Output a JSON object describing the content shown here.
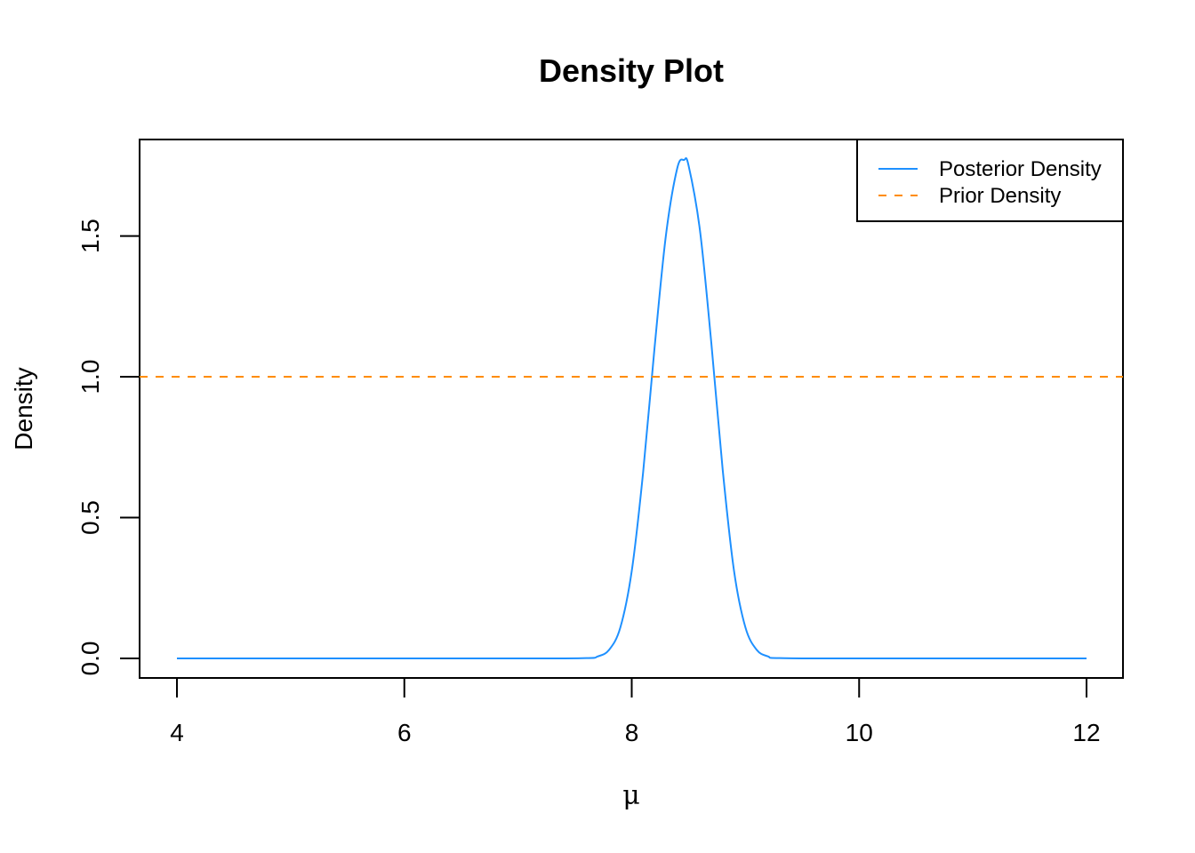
{
  "chart_data": {
    "type": "line",
    "title": "Density Plot",
    "xlabel": "μ",
    "ylabel": "Density",
    "xlim": [
      4,
      12
    ],
    "ylim": [
      0,
      1.77
    ],
    "xticks": [
      4,
      6,
      8,
      10,
      12
    ],
    "yticks": [
      0.0,
      0.5,
      1.0,
      1.5
    ],
    "xtick_labels": [
      "4",
      "6",
      "8",
      "10",
      "12"
    ],
    "ytick_labels": [
      "0.0",
      "0.5",
      "1.0",
      "1.5"
    ],
    "legend_position": "top-right",
    "series": [
      {
        "name": "Posterior Density",
        "style": "solid",
        "color": "#1E90FF",
        "x": [
          4.0,
          7.0,
          7.6,
          7.7,
          7.8,
          7.9,
          8.0,
          8.1,
          8.2,
          8.3,
          8.4,
          8.46,
          8.5,
          8.6,
          8.7,
          8.8,
          8.9,
          9.0,
          9.1,
          9.2,
          9.3,
          10.0,
          12.0
        ],
        "values": [
          0.0,
          0.0,
          0.001,
          0.007,
          0.03,
          0.11,
          0.31,
          0.66,
          1.1,
          1.5,
          1.74,
          1.77,
          1.75,
          1.52,
          1.12,
          0.67,
          0.31,
          0.11,
          0.03,
          0.007,
          0.001,
          0.0,
          0.0
        ]
      },
      {
        "name": "Prior Density",
        "style": "dashed",
        "color": "#FF8C00",
        "x": [
          4,
          12
        ],
        "values": [
          1.0,
          1.0
        ]
      }
    ]
  }
}
